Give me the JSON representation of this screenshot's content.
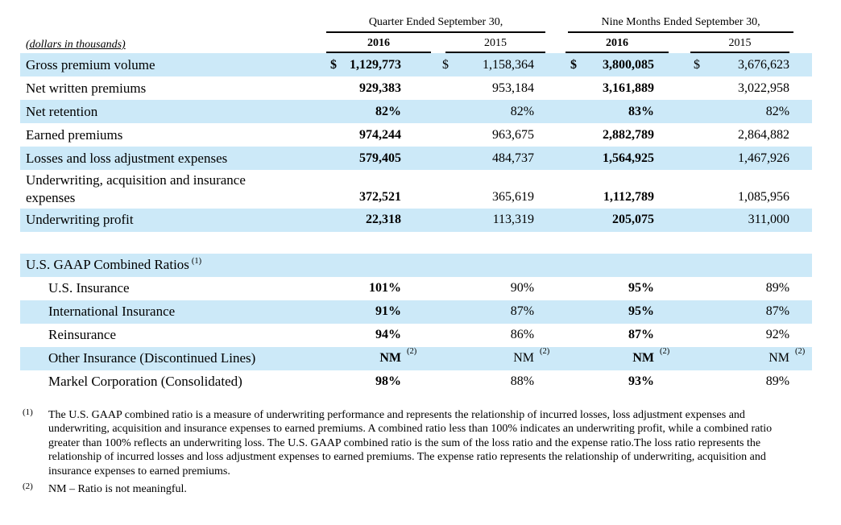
{
  "document": {
    "unit_note": "(dollars in thousands)"
  },
  "column_groups": [
    {
      "label": "Quarter Ended September 30,"
    },
    {
      "label": "Nine Months Ended September 30,"
    }
  ],
  "year_headers": [
    "2016",
    "2015",
    "2016",
    "2015"
  ],
  "premium_rows": [
    {
      "label": "Gross premium volume",
      "dollar": true,
      "values": [
        "1,129,773",
        "1,158,364",
        "3,800,085",
        "3,676,623"
      ]
    },
    {
      "label": "Net written premiums",
      "values": [
        "929,383",
        "953,184",
        "3,161,889",
        "3,022,958"
      ]
    },
    {
      "label": "Net retention",
      "values": [
        "82%",
        "82%",
        "83%",
        "82%"
      ]
    },
    {
      "label": "Earned premiums",
      "values": [
        "974,244",
        "963,675",
        "2,882,789",
        "2,864,882"
      ]
    },
    {
      "label": "Losses and loss adjustment expenses",
      "values": [
        "579,405",
        "484,737",
        "1,564,925",
        "1,467,926"
      ]
    },
    {
      "label": "Underwriting, acquisition and insurance expenses",
      "wrap": true,
      "values": [
        "372,521",
        "365,619",
        "1,112,789",
        "1,085,956"
      ]
    },
    {
      "label": "Underwriting profit",
      "values": [
        "22,318",
        "113,319",
        "205,075",
        "311,000"
      ]
    }
  ],
  "ratio_section": {
    "header": "U.S. GAAP Combined Ratios",
    "header_sup": "(1)",
    "rows": [
      {
        "label": "U.S. Insurance",
        "values": [
          "101%",
          "90%",
          "95%",
          "89%"
        ]
      },
      {
        "label": "International Insurance",
        "values": [
          "91%",
          "87%",
          "95%",
          "87%"
        ]
      },
      {
        "label": "Reinsurance",
        "values": [
          "94%",
          "86%",
          "87%",
          "92%"
        ]
      },
      {
        "label": "Other Insurance (Discontinued Lines)",
        "sup": "(2)",
        "values": [
          "NM",
          "NM",
          "NM",
          "NM"
        ]
      },
      {
        "label": "Markel Corporation (Consolidated)",
        "values": [
          "98%",
          "88%",
          "93%",
          "89%"
        ]
      }
    ]
  },
  "footnotes": [
    {
      "marker": "(1)",
      "text": "The U.S. GAAP combined ratio is a measure of underwriting performance and represents the relationship of incurred losses, loss adjustment expenses and underwriting, acquisition and insurance expenses to earned premiums.  A combined ratio less than 100% indicates an underwriting profit, while a combined ratio greater than 100% reflects an underwriting loss. The U.S. GAAP combined ratio is the sum of the loss ratio and the expense ratio.The loss ratio represents the relationship of incurred losses and loss adjustment expenses to earned premiums. The expense ratio represents the relationship of underwriting, acquisition and insurance expenses to earned premiums."
    },
    {
      "marker": "(2)",
      "text": "NM – Ratio is not meaningful."
    }
  ],
  "colors": {
    "band": "#cce9f8",
    "rule": "#000000"
  }
}
